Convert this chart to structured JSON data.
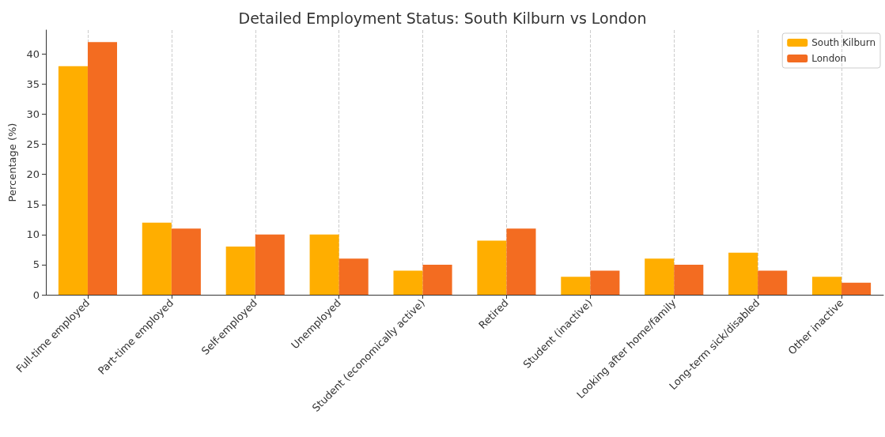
{
  "chart_data": {
    "type": "bar",
    "title": "Detailed Employment Status: South Kilburn vs London",
    "ylabel": "Percentage (%)",
    "categories": [
      "Full-time employed",
      "Part-time employed",
      "Self-employed",
      "Unemployed",
      "Student (economically active)",
      "Retired",
      "Student (inactive)",
      "Looking after home/family",
      "Long-term sick/disabled",
      "Other inactive"
    ],
    "series": [
      {
        "name": "South Kilburn",
        "color": "#ffae00",
        "values": [
          38,
          12,
          8,
          10,
          4,
          9,
          3,
          6,
          7,
          3
        ]
      },
      {
        "name": "London",
        "color": "#f36c21",
        "values": [
          42,
          11,
          10,
          6,
          5,
          11,
          4,
          5,
          4,
          2
        ]
      }
    ],
    "ylim": [
      0,
      44
    ],
    "yticks": [
      0,
      5,
      10,
      15,
      20,
      25,
      30,
      35,
      40
    ],
    "grid": "x",
    "legend": "top right"
  }
}
